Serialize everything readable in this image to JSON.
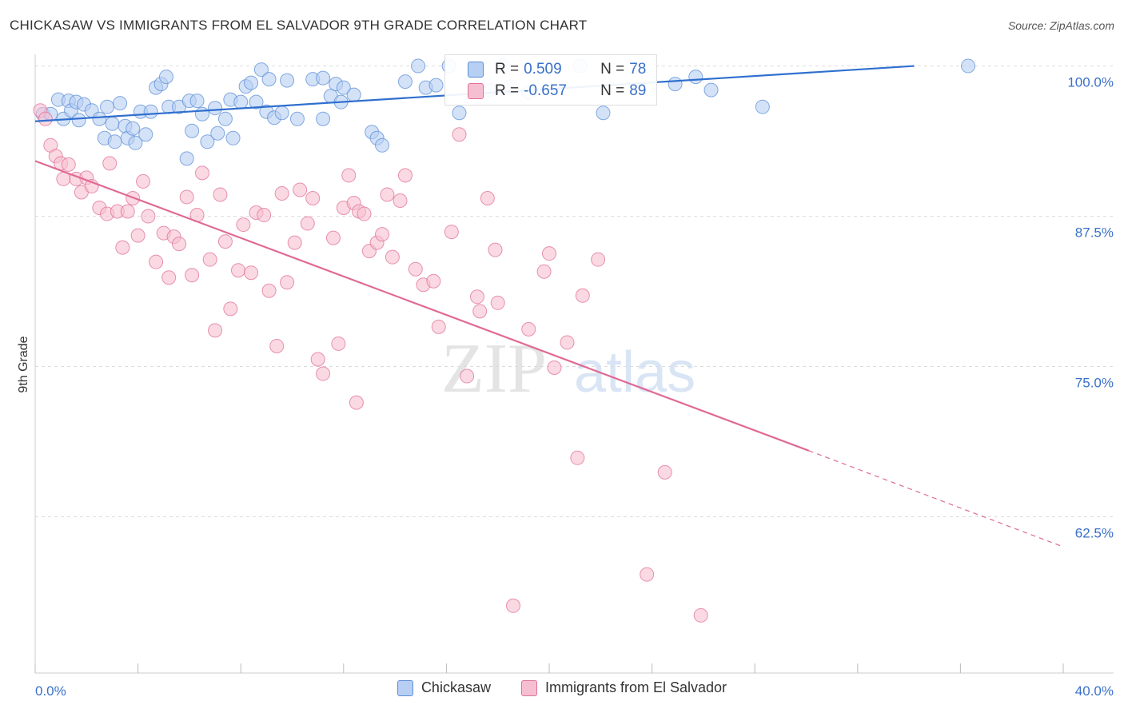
{
  "title": "CHICKASAW VS IMMIGRANTS FROM EL SALVADOR 9TH GRADE CORRELATION CHART",
  "source": "Source: ZipAtlas.com",
  "watermark": {
    "zip": "ZIP",
    "atlas": "atlas"
  },
  "stats": [
    {
      "r_label": "R =",
      "r_value": "0.509",
      "n_label": "N =",
      "n_value": "78",
      "color": "#5b8fd6",
      "fill": "#b7cff3"
    },
    {
      "r_label": "R =",
      "r_value": "-0.657",
      "n_label": "N =",
      "n_value": "89",
      "color": "#e07098",
      "fill": "#f6bfd1"
    }
  ],
  "legend": [
    {
      "label": "Chickasaw",
      "fill": "#b7cff3",
      "stroke": "#5b8fd6"
    },
    {
      "label": "Immigrants from El Salvador",
      "fill": "#f6bfd1",
      "stroke": "#e07098"
    }
  ],
  "chart_data": {
    "type": "scatter",
    "xlabel": "",
    "ylabel": "9th Grade",
    "xlim": [
      0,
      40
    ],
    "ylim": [
      49.5,
      101.5
    ],
    "x_tick_labels": [
      "0.0%",
      "40.0%"
    ],
    "y_ticks": [
      62.5,
      75.0,
      87.5,
      100.0
    ],
    "y_tick_labels": [
      "62.5%",
      "75.0%",
      "87.5%",
      "100.0%"
    ],
    "grid": true,
    "series": [
      {
        "name": "Chickasaw",
        "color": "#5b8fd6",
        "fill": "#b7cff3",
        "trend": {
          "x": [
            0,
            34.2
          ],
          "y": [
            95.4,
            100.0
          ]
        },
        "points": [
          [
            0.3,
            96
          ],
          [
            0.6,
            96
          ],
          [
            0.9,
            97.2
          ],
          [
            1.1,
            95.6
          ],
          [
            1.3,
            97.1
          ],
          [
            1.4,
            96.3
          ],
          [
            1.6,
            97
          ],
          [
            1.7,
            95.5
          ],
          [
            1.9,
            96.8
          ],
          [
            2.2,
            96.3
          ],
          [
            2.5,
            95.6
          ],
          [
            2.7,
            94
          ],
          [
            2.8,
            96.6
          ],
          [
            3.0,
            95.2
          ],
          [
            3.1,
            93.7
          ],
          [
            3.3,
            96.9
          ],
          [
            3.5,
            95
          ],
          [
            3.6,
            94
          ],
          [
            3.8,
            94.8
          ],
          [
            3.9,
            93.6
          ],
          [
            4.1,
            96.2
          ],
          [
            4.3,
            94.3
          ],
          [
            4.5,
            96.2
          ],
          [
            4.7,
            98.2
          ],
          [
            4.9,
            98.5
          ],
          [
            5.1,
            99.1
          ],
          [
            5.2,
            96.6
          ],
          [
            5.6,
            96.6
          ],
          [
            5.9,
            92.3
          ],
          [
            6.0,
            97.1
          ],
          [
            6.1,
            94.6
          ],
          [
            6.3,
            97.1
          ],
          [
            6.5,
            96
          ],
          [
            6.7,
            93.7
          ],
          [
            7.0,
            96.5
          ],
          [
            7.1,
            94.4
          ],
          [
            7.4,
            95.6
          ],
          [
            7.6,
            97.2
          ],
          [
            7.7,
            94
          ],
          [
            8.0,
            97
          ],
          [
            8.2,
            98.3
          ],
          [
            8.4,
            98.6
          ],
          [
            8.6,
            97
          ],
          [
            8.8,
            99.7
          ],
          [
            9.0,
            96.2
          ],
          [
            9.1,
            98.9
          ],
          [
            9.3,
            95.7
          ],
          [
            9.6,
            96.1
          ],
          [
            9.8,
            98.8
          ],
          [
            10.2,
            95.6
          ],
          [
            10.8,
            98.9
          ],
          [
            11.2,
            95.6
          ],
          [
            11.2,
            99
          ],
          [
            11.5,
            97.5
          ],
          [
            11.7,
            98.5
          ],
          [
            11.9,
            97
          ],
          [
            12.0,
            98.2
          ],
          [
            12.4,
            97.6
          ],
          [
            13.1,
            94.5
          ],
          [
            13.3,
            94
          ],
          [
            13.5,
            93.4
          ],
          [
            14.4,
            98.7
          ],
          [
            14.9,
            100
          ],
          [
            15.2,
            98.2
          ],
          [
            15.6,
            98.4
          ],
          [
            16.1,
            100
          ],
          [
            16.5,
            96.1
          ],
          [
            17.7,
            98
          ],
          [
            18.2,
            100
          ],
          [
            18.5,
            98.3
          ],
          [
            19.2,
            97.8
          ],
          [
            21.2,
            100
          ],
          [
            22.1,
            96.1
          ],
          [
            24.9,
            98.5
          ],
          [
            25.7,
            99.1
          ],
          [
            26.3,
            98
          ],
          [
            28.3,
            96.6
          ],
          [
            36.3,
            100
          ]
        ]
      },
      {
        "name": "Immigrants from El Salvador",
        "color": "#e07098",
        "fill": "#f6bfd1",
        "trend": {
          "x": [
            0,
            30.1
          ],
          "y": [
            92.1,
            68.0
          ]
        },
        "trend_dashed": {
          "x": [
            30.1,
            40
          ],
          "y": [
            68.0,
            60.0
          ]
        },
        "points": [
          [
            0.2,
            96.3
          ],
          [
            0.4,
            95.6
          ],
          [
            0.6,
            93.4
          ],
          [
            0.8,
            92.5
          ],
          [
            1.0,
            91.9
          ],
          [
            1.1,
            90.6
          ],
          [
            1.3,
            91.8
          ],
          [
            1.6,
            90.6
          ],
          [
            1.8,
            89.5
          ],
          [
            2.0,
            90.7
          ],
          [
            2.2,
            90
          ],
          [
            2.5,
            88.2
          ],
          [
            2.8,
            87.7
          ],
          [
            2.9,
            91.9
          ],
          [
            3.2,
            87.9
          ],
          [
            3.4,
            84.9
          ],
          [
            3.6,
            87.9
          ],
          [
            3.8,
            89
          ],
          [
            4.0,
            85.9
          ],
          [
            4.2,
            90.4
          ],
          [
            4.4,
            87.5
          ],
          [
            4.7,
            83.7
          ],
          [
            5.0,
            86.1
          ],
          [
            5.2,
            82.4
          ],
          [
            5.4,
            85.8
          ],
          [
            5.6,
            85.2
          ],
          [
            5.9,
            89.1
          ],
          [
            6.1,
            82.6
          ],
          [
            6.3,
            87.6
          ],
          [
            6.5,
            91.1
          ],
          [
            6.8,
            83.9
          ],
          [
            7.0,
            78
          ],
          [
            7.2,
            89.3
          ],
          [
            7.4,
            85.4
          ],
          [
            7.6,
            79.8
          ],
          [
            7.9,
            83
          ],
          [
            8.1,
            86.8
          ],
          [
            8.4,
            82.8
          ],
          [
            8.6,
            87.8
          ],
          [
            8.9,
            87.6
          ],
          [
            9.1,
            81.3
          ],
          [
            9.4,
            76.7
          ],
          [
            9.6,
            89.4
          ],
          [
            9.8,
            82
          ],
          [
            10.1,
            85.3
          ],
          [
            10.3,
            89.7
          ],
          [
            10.6,
            86.9
          ],
          [
            10.8,
            89
          ],
          [
            11.0,
            75.6
          ],
          [
            11.2,
            74.4
          ],
          [
            11.6,
            85.7
          ],
          [
            11.8,
            76.9
          ],
          [
            12.0,
            88.2
          ],
          [
            12.2,
            90.9
          ],
          [
            12.4,
            88.6
          ],
          [
            12.6,
            87.9
          ],
          [
            12.8,
            87.7
          ],
          [
            13.0,
            84.6
          ],
          [
            13.3,
            85.3
          ],
          [
            13.5,
            86
          ],
          [
            13.7,
            89.3
          ],
          [
            13.9,
            84.1
          ],
          [
            14.2,
            88.8
          ],
          [
            14.4,
            90.9
          ],
          [
            14.8,
            83.1
          ],
          [
            15.1,
            81.8
          ],
          [
            15.5,
            82.1
          ],
          [
            15.7,
            78.3
          ],
          [
            16.2,
            86.2
          ],
          [
            16.5,
            94.3
          ],
          [
            16.8,
            74.2
          ],
          [
            17.2,
            80.8
          ],
          [
            17.3,
            79.6
          ],
          [
            17.6,
            89
          ],
          [
            17.9,
            84.7
          ],
          [
            18.0,
            80.3
          ],
          [
            18.6,
            55.1
          ],
          [
            19.2,
            78.1
          ],
          [
            19.8,
            82.9
          ],
          [
            20.0,
            84.4
          ],
          [
            20.2,
            74.9
          ],
          [
            20.7,
            77.0
          ],
          [
            21.1,
            67.4
          ],
          [
            21.3,
            80.9
          ],
          [
            21.9,
            83.9
          ],
          [
            23.8,
            57.7
          ],
          [
            24.5,
            66.2
          ],
          [
            25.9,
            54.3
          ],
          [
            12.5,
            72
          ]
        ]
      }
    ]
  }
}
